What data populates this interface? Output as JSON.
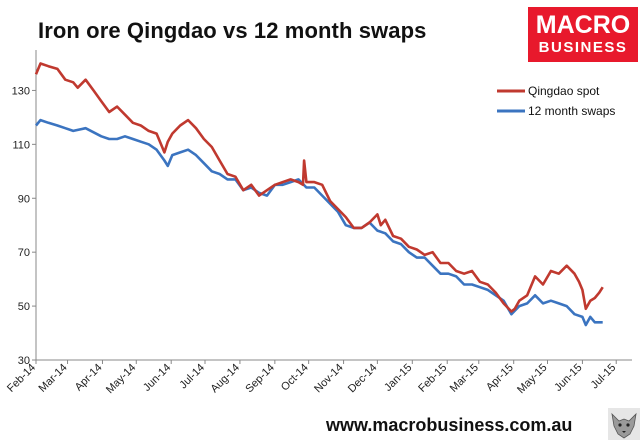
{
  "page": {
    "url": "www.macrobusiness.com.au"
  },
  "logo": {
    "line1": "MACRO",
    "line2": "BUSINESS",
    "color": "#e8192c"
  },
  "chart_data": {
    "type": "line",
    "title": "Iron ore Qingdao vs 12 month swaps",
    "xlabel": "",
    "ylabel": "",
    "ylim": [
      30,
      145
    ],
    "yticks": [
      30,
      50,
      70,
      90,
      110,
      130
    ],
    "xlim": [
      "2014-02-01",
      "2015-07-15"
    ],
    "xticks": [
      "Feb-14",
      "Mar-14",
      "Apr-14",
      "May-14",
      "Jun-14",
      "Jul-14",
      "Aug-14",
      "Sep-14",
      "Oct-14",
      "Nov-14",
      "Dec-14",
      "Jan-15",
      "Feb-15",
      "Mar-15",
      "Apr-15",
      "May-15",
      "Jun-15",
      "Jul-15"
    ],
    "grid": false,
    "legend_position": "top-right",
    "series": [
      {
        "name": "Qingdao spot",
        "color": "#c0392f",
        "x": [
          "2014-02-01",
          "2014-02-05",
          "2014-02-12",
          "2014-02-20",
          "2014-02-27",
          "2014-03-06",
          "2014-03-10",
          "2014-03-17",
          "2014-03-24",
          "2014-03-31",
          "2014-04-07",
          "2014-04-14",
          "2014-04-21",
          "2014-04-28",
          "2014-05-05",
          "2014-05-12",
          "2014-05-19",
          "2014-05-26",
          "2014-05-29",
          "2014-06-02",
          "2014-06-09",
          "2014-06-16",
          "2014-06-23",
          "2014-06-30",
          "2014-07-07",
          "2014-07-14",
          "2014-07-21",
          "2014-07-28",
          "2014-08-04",
          "2014-08-11",
          "2014-08-18",
          "2014-08-25",
          "2014-09-01",
          "2014-09-08",
          "2014-09-15",
          "2014-09-22",
          "2014-09-26",
          "2014-09-27",
          "2014-09-29",
          "2014-10-06",
          "2014-10-13",
          "2014-10-20",
          "2014-10-27",
          "2014-11-03",
          "2014-11-10",
          "2014-11-17",
          "2014-11-24",
          "2014-12-01",
          "2014-12-04",
          "2014-12-08",
          "2014-12-15",
          "2014-12-22",
          "2014-12-29",
          "2015-01-05",
          "2015-01-12",
          "2015-01-19",
          "2015-01-26",
          "2015-02-02",
          "2015-02-09",
          "2015-02-16",
          "2015-02-23",
          "2015-03-02",
          "2015-03-09",
          "2015-03-16",
          "2015-03-23",
          "2015-03-30",
          "2015-04-02",
          "2015-04-06",
          "2015-04-13",
          "2015-04-20",
          "2015-04-27",
          "2015-05-04",
          "2015-05-11",
          "2015-05-18",
          "2015-05-25",
          "2015-05-29",
          "2015-06-01",
          "2015-06-04",
          "2015-06-08",
          "2015-06-12",
          "2015-06-16",
          "2015-06-19"
        ],
        "y": [
          136,
          140,
          139,
          138,
          134,
          133,
          131,
          134,
          130,
          126,
          122,
          124,
          121,
          118,
          117,
          115,
          114,
          107,
          111,
          114,
          117,
          119,
          116,
          112,
          109,
          104,
          99,
          98,
          93,
          95,
          91,
          93,
          95,
          96,
          97,
          96,
          95,
          104,
          96,
          96,
          95,
          89,
          86,
          83,
          79,
          79,
          81,
          84,
          80,
          82,
          76,
          75,
          72,
          71,
          69,
          70,
          66,
          66,
          63,
          62,
          63,
          59,
          58,
          55,
          51,
          48,
          49,
          52,
          54,
          61,
          58,
          63,
          62,
          65,
          62,
          59,
          56,
          49,
          52,
          53,
          55,
          57
        ]
      },
      {
        "name": "12 month swaps",
        "color": "#3b74c0",
        "x": [
          "2014-02-01",
          "2014-02-05",
          "2014-02-12",
          "2014-02-20",
          "2014-02-27",
          "2014-03-06",
          "2014-03-17",
          "2014-03-31",
          "2014-04-07",
          "2014-04-14",
          "2014-04-21",
          "2014-04-28",
          "2014-05-05",
          "2014-05-12",
          "2014-05-19",
          "2014-05-26",
          "2014-05-29",
          "2014-06-02",
          "2014-06-09",
          "2014-06-16",
          "2014-06-23",
          "2014-06-30",
          "2014-07-07",
          "2014-07-14",
          "2014-07-21",
          "2014-07-28",
          "2014-08-04",
          "2014-08-11",
          "2014-08-18",
          "2014-08-25",
          "2014-09-01",
          "2014-09-08",
          "2014-09-15",
          "2014-09-22",
          "2014-09-29",
          "2014-10-06",
          "2014-10-13",
          "2014-10-20",
          "2014-10-27",
          "2014-11-03",
          "2014-11-10",
          "2014-11-17",
          "2014-11-24",
          "2014-12-01",
          "2014-12-08",
          "2014-12-15",
          "2014-12-22",
          "2014-12-29",
          "2015-01-05",
          "2015-01-12",
          "2015-01-19",
          "2015-01-26",
          "2015-02-02",
          "2015-02-09",
          "2015-02-16",
          "2015-02-23",
          "2015-03-02",
          "2015-03-09",
          "2015-03-16",
          "2015-03-23",
          "2015-03-30",
          "2015-04-06",
          "2015-04-13",
          "2015-04-20",
          "2015-04-27",
          "2015-05-04",
          "2015-05-11",
          "2015-05-18",
          "2015-05-25",
          "2015-06-01",
          "2015-06-04",
          "2015-06-08",
          "2015-06-12",
          "2015-06-16",
          "2015-06-19"
        ],
        "y": [
          117,
          119,
          118,
          117,
          116,
          115,
          116,
          113,
          112,
          112,
          113,
          112,
          111,
          110,
          108,
          104,
          102,
          106,
          107,
          108,
          106,
          103,
          100,
          99,
          97,
          97,
          93,
          94,
          92,
          91,
          95,
          95,
          96,
          97,
          94,
          94,
          91,
          88,
          85,
          80,
          79,
          79,
          81,
          78,
          77,
          74,
          73,
          70,
          68,
          68,
          65,
          62,
          62,
          61,
          58,
          58,
          57,
          56,
          54,
          52,
          47,
          50,
          51,
          54,
          51,
          52,
          51,
          50,
          47,
          46,
          43,
          46,
          44,
          44,
          44
        ]
      }
    ]
  }
}
